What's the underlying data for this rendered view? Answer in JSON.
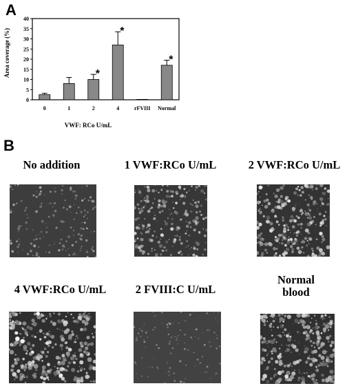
{
  "panel_a": {
    "letter": "A"
  },
  "panel_b": {
    "letter": "B"
  },
  "chart_data": {
    "type": "bar",
    "categories": [
      "0",
      "1",
      "2",
      "4",
      "rFVIII",
      "Normal"
    ],
    "values": [
      2.5,
      8,
      10,
      27,
      0.2,
      17
    ],
    "errors": [
      0.7,
      3,
      2.5,
      6.5,
      0,
      2.5
    ],
    "significant": [
      false,
      false,
      true,
      true,
      false,
      true
    ],
    "significance_marker": "*",
    "ylabel": "Area coverage (%)",
    "xlabel": "VWF: RCo U/mL",
    "ylim": [
      0,
      40
    ],
    "yticks": [
      0,
      5,
      10,
      15,
      20,
      25,
      30,
      35,
      40
    ],
    "bar_color": "#888888"
  },
  "micrographs": [
    {
      "label": "No addition",
      "density": 0.35,
      "brightness": 0.55,
      "seed": 11
    },
    {
      "label": "1 VWF:RCo U/mL",
      "density": 0.6,
      "brightness": 0.85,
      "seed": 23
    },
    {
      "label": "2 VWF:RCo U/mL",
      "density": 0.75,
      "brightness": 0.9,
      "seed": 37
    },
    {
      "label": "4 VWF:RCo U/mL",
      "density": 0.95,
      "brightness": 0.95,
      "seed": 41
    },
    {
      "label": "2 FVIII:C U/mL",
      "density": 0.15,
      "brightness": 0.35,
      "seed": 53
    },
    {
      "label": "Normal blood",
      "density": 0.9,
      "brightness": 0.9,
      "seed": 67
    }
  ]
}
